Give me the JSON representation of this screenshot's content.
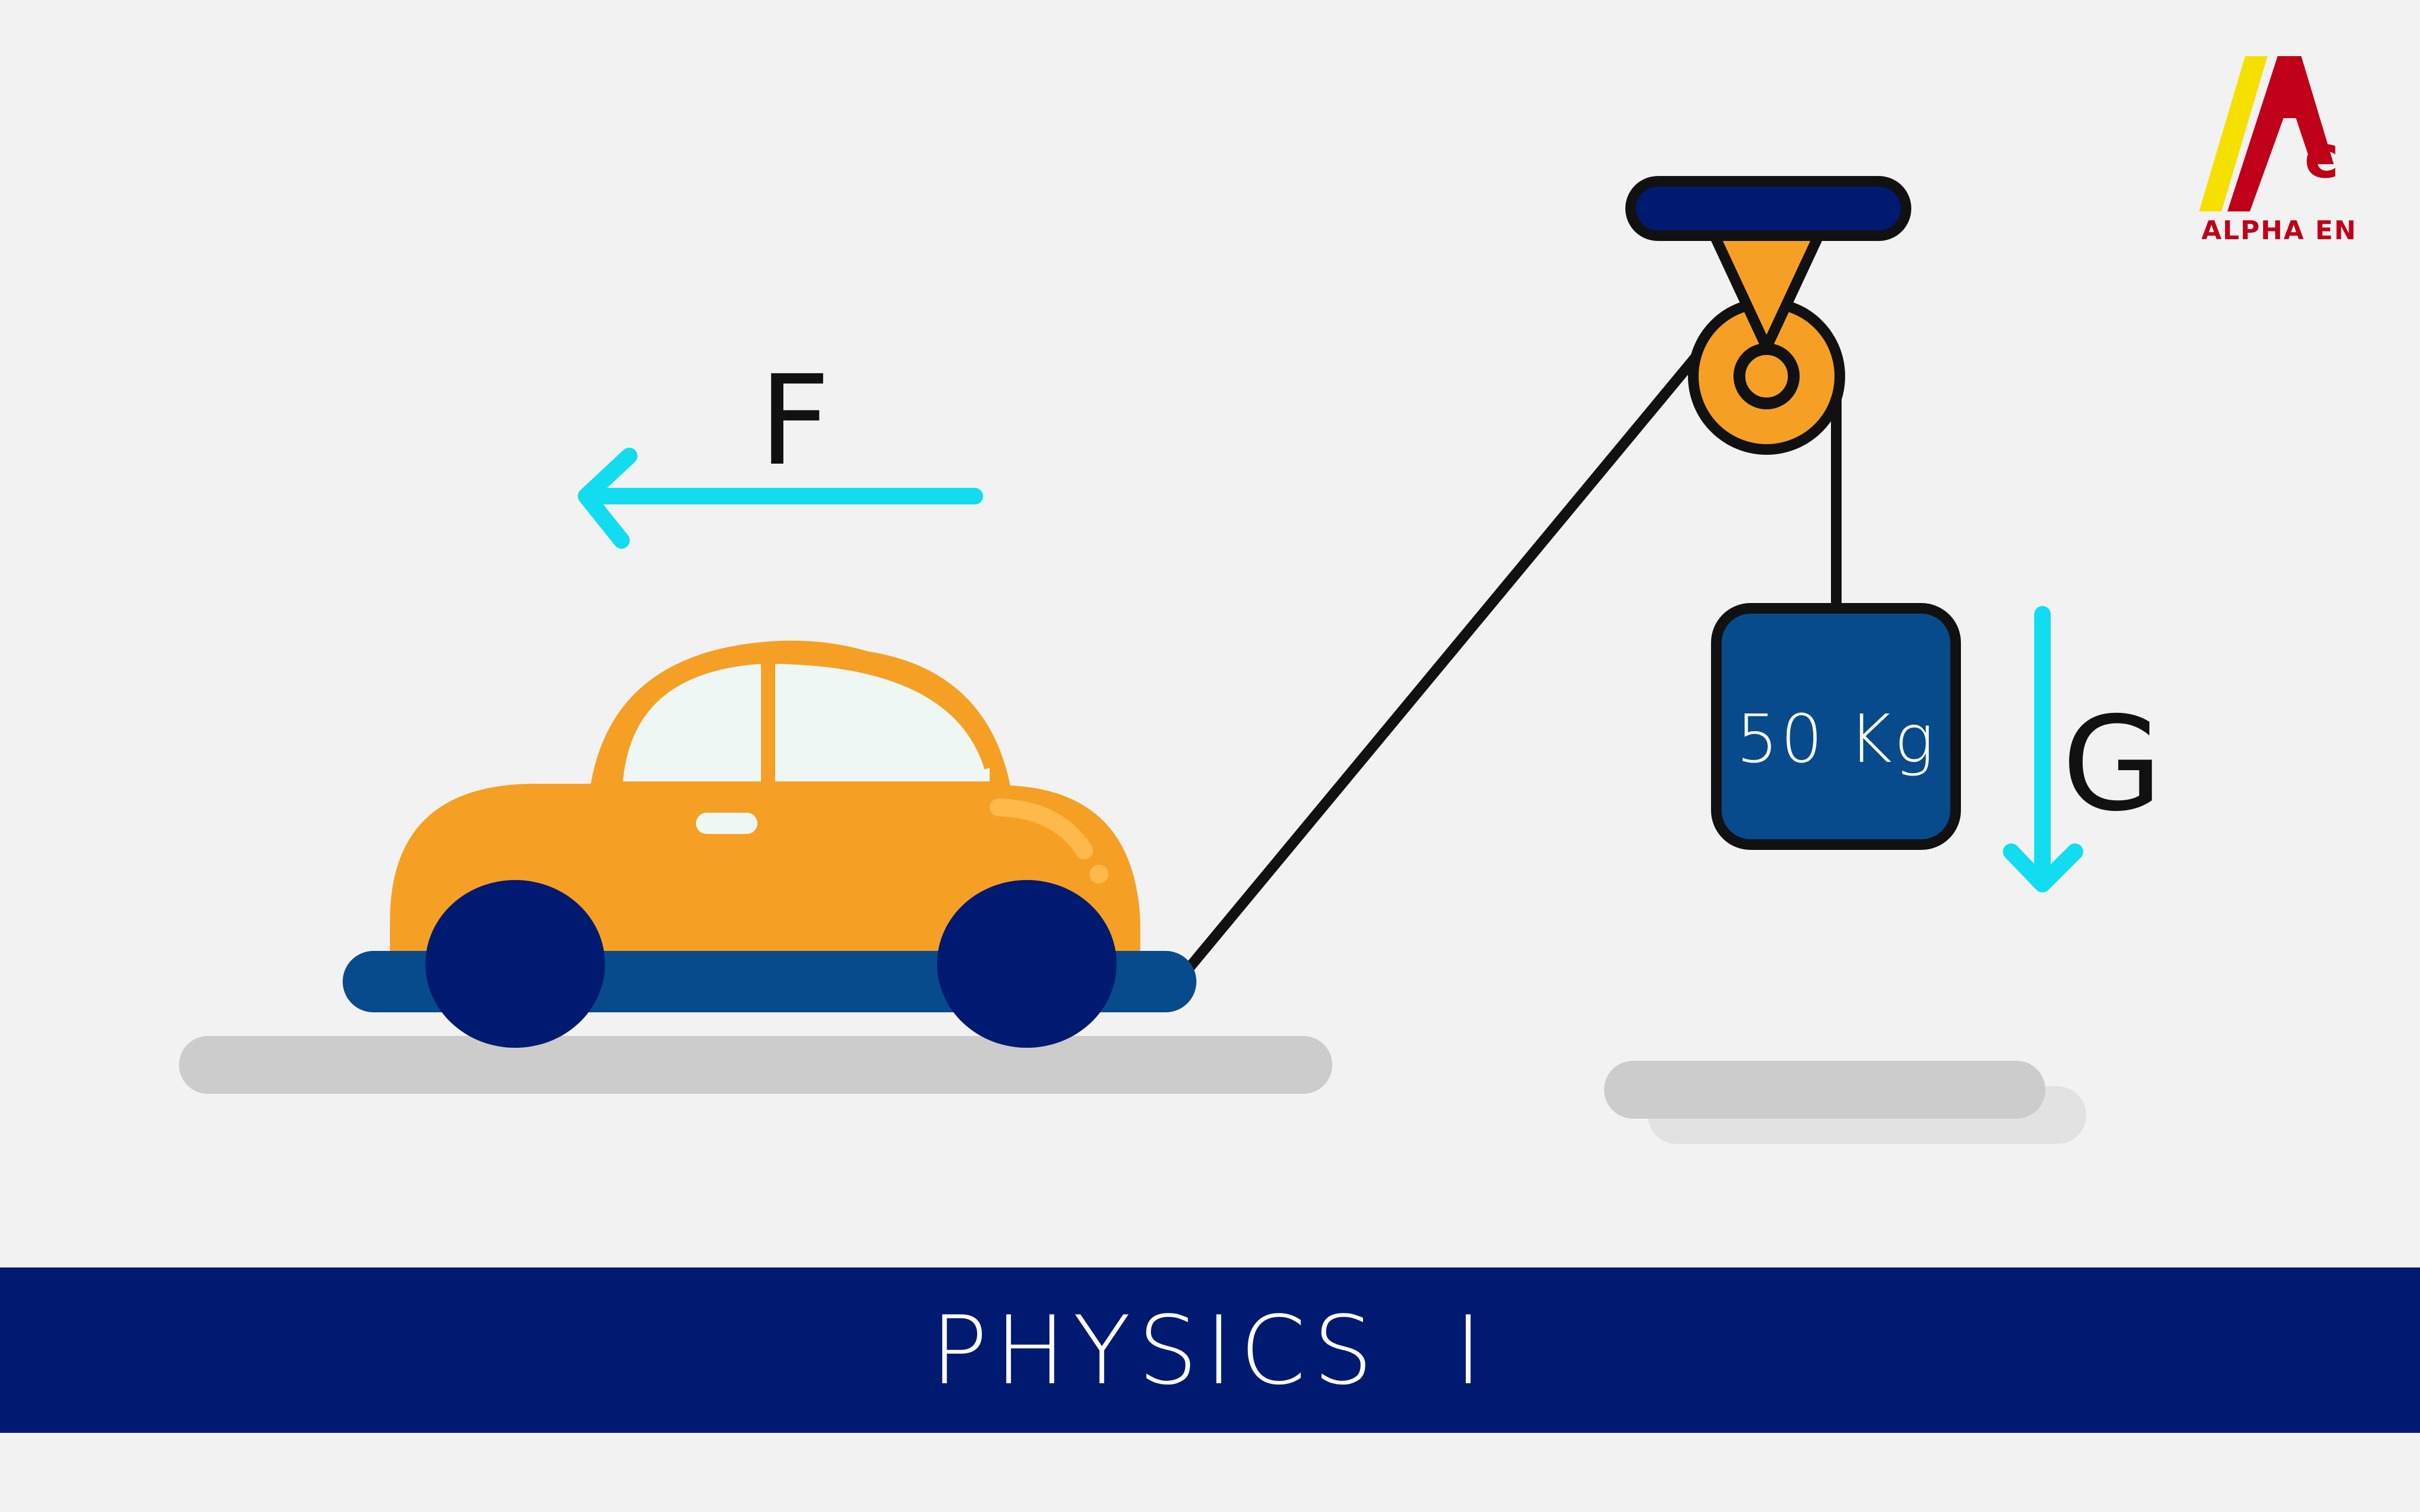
{
  "logo": {
    "text": "ALPHA EN",
    "colors": {
      "yellow": "#f5e000",
      "red": "#c00018"
    }
  },
  "diagram": {
    "force_label": "F",
    "gravity_label": "G",
    "weight_label": "50 Kg",
    "colors": {
      "background": "#f2f2f2",
      "car_body": "#f5a025",
      "car_window": "#eef7f4",
      "wheel": "#001a72",
      "chassis": "#084b8c",
      "arrow": "#12dcf0",
      "weight_box": "#084b8c",
      "pulley": "#f5a025",
      "beam": "#001a72",
      "ground_shadow": "#cccccc"
    }
  },
  "banner": {
    "title": "PHYSICS  I",
    "background": "#001a72"
  }
}
